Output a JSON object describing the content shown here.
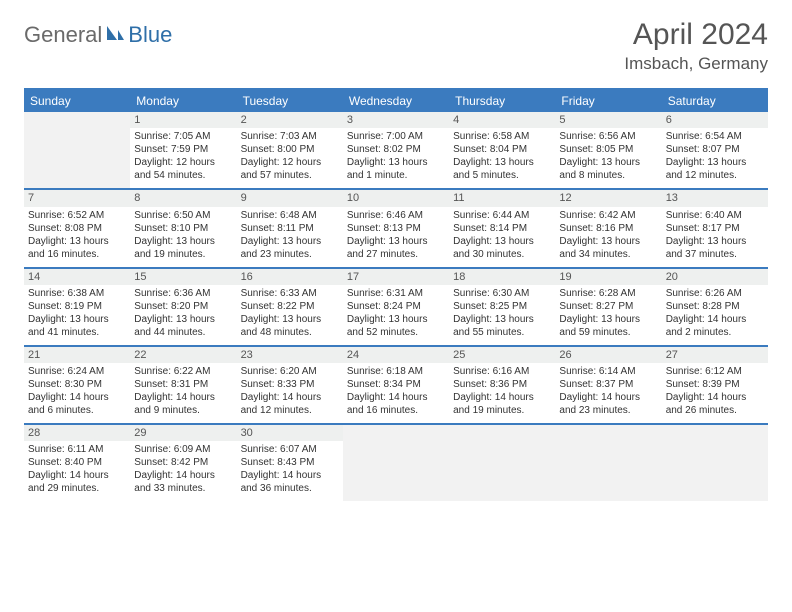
{
  "logo": {
    "part1": "General",
    "part2": "Blue"
  },
  "title": {
    "month": "April 2024",
    "location": "Imsbach, Germany"
  },
  "colors": {
    "header_bg": "#3b7bbf",
    "header_text": "#ffffff",
    "daynum_bg": "#eef0ef",
    "rule": "#3b7bbf",
    "empty_bg": "#f2f2f2",
    "text": "#333333",
    "title_text": "#555555",
    "logo_gray": "#6a6a6a",
    "logo_blue": "#2f6fa8"
  },
  "weekdays": [
    "Sunday",
    "Monday",
    "Tuesday",
    "Wednesday",
    "Thursday",
    "Friday",
    "Saturday"
  ],
  "weeks": [
    [
      null,
      {
        "n": "1",
        "sr": "Sunrise: 7:05 AM",
        "ss": "Sunset: 7:59 PM",
        "d1": "Daylight: 12 hours",
        "d2": "and 54 minutes."
      },
      {
        "n": "2",
        "sr": "Sunrise: 7:03 AM",
        "ss": "Sunset: 8:00 PM",
        "d1": "Daylight: 12 hours",
        "d2": "and 57 minutes."
      },
      {
        "n": "3",
        "sr": "Sunrise: 7:00 AM",
        "ss": "Sunset: 8:02 PM",
        "d1": "Daylight: 13 hours",
        "d2": "and 1 minute."
      },
      {
        "n": "4",
        "sr": "Sunrise: 6:58 AM",
        "ss": "Sunset: 8:04 PM",
        "d1": "Daylight: 13 hours",
        "d2": "and 5 minutes."
      },
      {
        "n": "5",
        "sr": "Sunrise: 6:56 AM",
        "ss": "Sunset: 8:05 PM",
        "d1": "Daylight: 13 hours",
        "d2": "and 8 minutes."
      },
      {
        "n": "6",
        "sr": "Sunrise: 6:54 AM",
        "ss": "Sunset: 8:07 PM",
        "d1": "Daylight: 13 hours",
        "d2": "and 12 minutes."
      }
    ],
    [
      {
        "n": "7",
        "sr": "Sunrise: 6:52 AM",
        "ss": "Sunset: 8:08 PM",
        "d1": "Daylight: 13 hours",
        "d2": "and 16 minutes."
      },
      {
        "n": "8",
        "sr": "Sunrise: 6:50 AM",
        "ss": "Sunset: 8:10 PM",
        "d1": "Daylight: 13 hours",
        "d2": "and 19 minutes."
      },
      {
        "n": "9",
        "sr": "Sunrise: 6:48 AM",
        "ss": "Sunset: 8:11 PM",
        "d1": "Daylight: 13 hours",
        "d2": "and 23 minutes."
      },
      {
        "n": "10",
        "sr": "Sunrise: 6:46 AM",
        "ss": "Sunset: 8:13 PM",
        "d1": "Daylight: 13 hours",
        "d2": "and 27 minutes."
      },
      {
        "n": "11",
        "sr": "Sunrise: 6:44 AM",
        "ss": "Sunset: 8:14 PM",
        "d1": "Daylight: 13 hours",
        "d2": "and 30 minutes."
      },
      {
        "n": "12",
        "sr": "Sunrise: 6:42 AM",
        "ss": "Sunset: 8:16 PM",
        "d1": "Daylight: 13 hours",
        "d2": "and 34 minutes."
      },
      {
        "n": "13",
        "sr": "Sunrise: 6:40 AM",
        "ss": "Sunset: 8:17 PM",
        "d1": "Daylight: 13 hours",
        "d2": "and 37 minutes."
      }
    ],
    [
      {
        "n": "14",
        "sr": "Sunrise: 6:38 AM",
        "ss": "Sunset: 8:19 PM",
        "d1": "Daylight: 13 hours",
        "d2": "and 41 minutes."
      },
      {
        "n": "15",
        "sr": "Sunrise: 6:36 AM",
        "ss": "Sunset: 8:20 PM",
        "d1": "Daylight: 13 hours",
        "d2": "and 44 minutes."
      },
      {
        "n": "16",
        "sr": "Sunrise: 6:33 AM",
        "ss": "Sunset: 8:22 PM",
        "d1": "Daylight: 13 hours",
        "d2": "and 48 minutes."
      },
      {
        "n": "17",
        "sr": "Sunrise: 6:31 AM",
        "ss": "Sunset: 8:24 PM",
        "d1": "Daylight: 13 hours",
        "d2": "and 52 minutes."
      },
      {
        "n": "18",
        "sr": "Sunrise: 6:30 AM",
        "ss": "Sunset: 8:25 PM",
        "d1": "Daylight: 13 hours",
        "d2": "and 55 minutes."
      },
      {
        "n": "19",
        "sr": "Sunrise: 6:28 AM",
        "ss": "Sunset: 8:27 PM",
        "d1": "Daylight: 13 hours",
        "d2": "and 59 minutes."
      },
      {
        "n": "20",
        "sr": "Sunrise: 6:26 AM",
        "ss": "Sunset: 8:28 PM",
        "d1": "Daylight: 14 hours",
        "d2": "and 2 minutes."
      }
    ],
    [
      {
        "n": "21",
        "sr": "Sunrise: 6:24 AM",
        "ss": "Sunset: 8:30 PM",
        "d1": "Daylight: 14 hours",
        "d2": "and 6 minutes."
      },
      {
        "n": "22",
        "sr": "Sunrise: 6:22 AM",
        "ss": "Sunset: 8:31 PM",
        "d1": "Daylight: 14 hours",
        "d2": "and 9 minutes."
      },
      {
        "n": "23",
        "sr": "Sunrise: 6:20 AM",
        "ss": "Sunset: 8:33 PM",
        "d1": "Daylight: 14 hours",
        "d2": "and 12 minutes."
      },
      {
        "n": "24",
        "sr": "Sunrise: 6:18 AM",
        "ss": "Sunset: 8:34 PM",
        "d1": "Daylight: 14 hours",
        "d2": "and 16 minutes."
      },
      {
        "n": "25",
        "sr": "Sunrise: 6:16 AM",
        "ss": "Sunset: 8:36 PM",
        "d1": "Daylight: 14 hours",
        "d2": "and 19 minutes."
      },
      {
        "n": "26",
        "sr": "Sunrise: 6:14 AM",
        "ss": "Sunset: 8:37 PM",
        "d1": "Daylight: 14 hours",
        "d2": "and 23 minutes."
      },
      {
        "n": "27",
        "sr": "Sunrise: 6:12 AM",
        "ss": "Sunset: 8:39 PM",
        "d1": "Daylight: 14 hours",
        "d2": "and 26 minutes."
      }
    ],
    [
      {
        "n": "28",
        "sr": "Sunrise: 6:11 AM",
        "ss": "Sunset: 8:40 PM",
        "d1": "Daylight: 14 hours",
        "d2": "and 29 minutes."
      },
      {
        "n": "29",
        "sr": "Sunrise: 6:09 AM",
        "ss": "Sunset: 8:42 PM",
        "d1": "Daylight: 14 hours",
        "d2": "and 33 minutes."
      },
      {
        "n": "30",
        "sr": "Sunrise: 6:07 AM",
        "ss": "Sunset: 8:43 PM",
        "d1": "Daylight: 14 hours",
        "d2": "and 36 minutes."
      },
      null,
      null,
      null,
      null
    ]
  ]
}
